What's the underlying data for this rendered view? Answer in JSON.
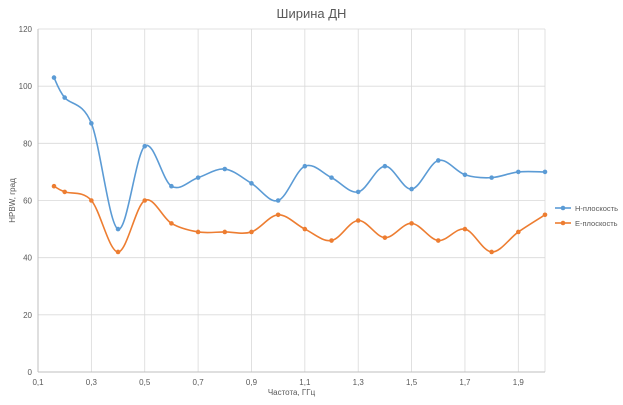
{
  "chart_data": {
    "type": "line",
    "title": "Ширина ДН",
    "xlabel": "Частота, ГГц",
    "ylabel": "HPBW, град",
    "xlim": [
      0.1,
      2.0
    ],
    "ylim": [
      0,
      120
    ],
    "x_ticks": [
      "0,1",
      "0,3",
      "0,5",
      "0,7",
      "0,9",
      "1,1",
      "1,3",
      "1,5",
      "1,7",
      "1,9"
    ],
    "x_tick_values": [
      0.1,
      0.3,
      0.5,
      0.7,
      0.9,
      1.1,
      1.3,
      1.5,
      1.7,
      1.9
    ],
    "y_ticks": [
      "0",
      "20",
      "40",
      "60",
      "80",
      "100",
      "120"
    ],
    "y_tick_values": [
      0,
      20,
      40,
      60,
      80,
      100,
      120
    ],
    "x_grid": [
      0.1,
      0.3,
      0.5,
      0.7,
      0.9,
      1.1,
      1.3,
      1.5,
      1.7,
      1.9,
      2.0
    ],
    "grid": true,
    "legend_position": "right",
    "x": [
      0.16,
      0.2,
      0.3,
      0.4,
      0.5,
      0.6,
      0.7,
      0.8,
      0.9,
      1.0,
      1.1,
      1.2,
      1.3,
      1.4,
      1.5,
      1.6,
      1.7,
      1.8,
      1.9,
      2.0
    ],
    "series": [
      {
        "name": "H-плоскость",
        "color": "#5b9bd5",
        "values": [
          103,
          96,
          87,
          50,
          79,
          65,
          68,
          71,
          66,
          60,
          72,
          68,
          63,
          72,
          64,
          74,
          69,
          68,
          70,
          70
        ]
      },
      {
        "name": "E-плоскость",
        "color": "#ed7d31",
        "values": [
          65,
          63,
          60,
          42,
          60,
          52,
          49,
          49,
          49,
          55,
          50,
          46,
          53,
          47,
          52,
          46,
          50,
          42,
          49,
          55
        ]
      }
    ]
  }
}
